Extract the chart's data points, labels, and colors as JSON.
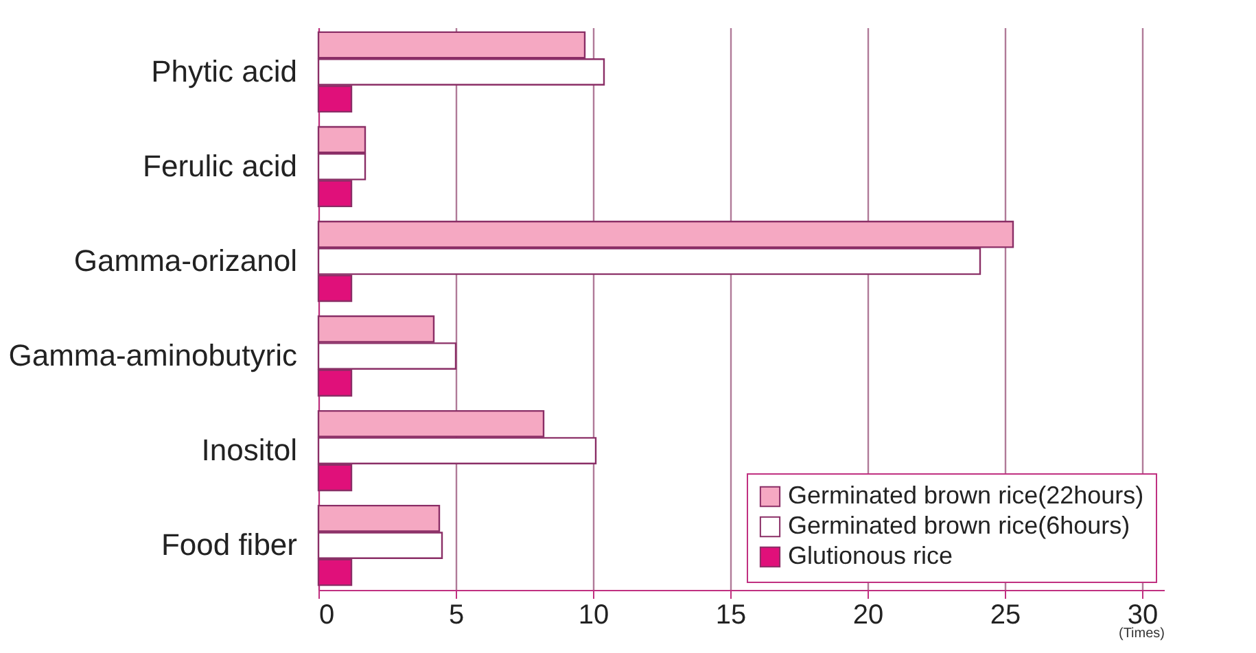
{
  "chart_data": {
    "type": "bar",
    "orientation": "horizontal",
    "categories": [
      "Phytic acid",
      "Ferulic acid",
      "Gamma-orizanol",
      "Gamma-aminobutyric",
      "Inositol",
      "Food fiber"
    ],
    "series": [
      {
        "name": "Germinated brown rice(22hours)",
        "color": "#f5a8c2",
        "values": [
          9.7,
          1.7,
          25.3,
          4.2,
          8.2,
          4.4
        ]
      },
      {
        "name": "Germinated brown rice(6hours)",
        "color": "#ffffff",
        "values": [
          10.4,
          1.7,
          24.1,
          5.0,
          10.1,
          4.5
        ]
      },
      {
        "name": "Glutionous rice",
        "color": "#e0107a",
        "values": [
          1.2,
          1.2,
          1.2,
          1.2,
          1.2,
          1.2
        ]
      }
    ],
    "xlim": [
      0,
      30.8
    ],
    "xticks": [
      0,
      5,
      10,
      15,
      20,
      25,
      30
    ],
    "xlabel": "(Times)",
    "grid": "x",
    "legend": "bottom right"
  }
}
